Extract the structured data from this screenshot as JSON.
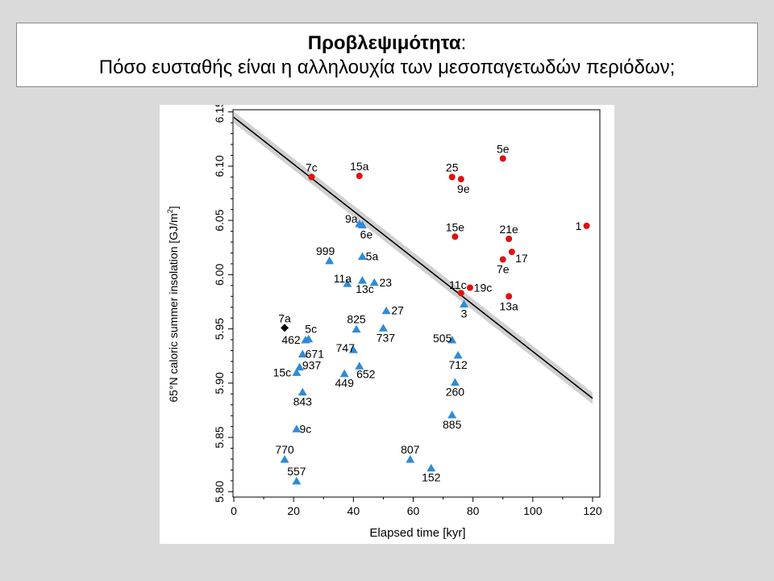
{
  "title": {
    "bold": "Προβλεψιμότητα",
    "colon": ":",
    "subtitle": "Πόσο ευσταθής είναι η αλληλουχία των μεσοπαγετωδών περιόδων;"
  },
  "colors": {
    "triangle": "#2f8bd6",
    "circle": "#e01010",
    "diamond": "#000000",
    "band": "#d0d0d0",
    "line": "#000000"
  },
  "chart_data": {
    "type": "scatter",
    "xlabel": "Elapsed time [kyr]",
    "ylabel": "65°N caloric summer insolation [GJ/m²]",
    "ylabel_main": "65°N caloric summer insolation [GJ/m",
    "ylabel_sup": "2",
    "ylabel_end": "]",
    "xlim": [
      0,
      120
    ],
    "ylim": [
      5.795,
      6.152
    ],
    "xticks": [
      0,
      20,
      40,
      60,
      80,
      100,
      120
    ],
    "yticks": [
      "5.80",
      "5.85",
      "5.90",
      "5.95",
      "6.00",
      "6.05",
      "6.10",
      "6.15"
    ],
    "fit_line": {
      "x": [
        0,
        120
      ],
      "y": [
        6.145,
        5.886
      ]
    },
    "series": [
      {
        "marker": "triangle",
        "points": [
          {
            "label": "9a",
            "x": 42,
            "y": 6.047,
            "lx": -10,
            "ly": -6
          },
          {
            "label": "6e",
            "x": 43,
            "y": 6.046,
            "lx": 5,
            "ly": 12
          },
          {
            "label": "999",
            "x": 32,
            "y": 6.013,
            "lx": -5,
            "ly": -12
          },
          {
            "label": "5a",
            "x": 43,
            "y": 6.017,
            "lx": 12,
            "ly": 0
          },
          {
            "label": "11a",
            "x": 38,
            "y": 5.992,
            "lx": -6,
            "ly": -6
          },
          {
            "label": "13c",
            "x": 43,
            "y": 5.995,
            "lx": 3,
            "ly": 11
          },
          {
            "label": "23",
            "x": 47,
            "y": 5.993,
            "lx": 14,
            "ly": 0
          },
          {
            "label": "27",
            "x": 51,
            "y": 5.967,
            "lx": 14,
            "ly": 0
          },
          {
            "label": "825",
            "x": 41,
            "y": 5.95,
            "lx": 0,
            "ly": -12
          },
          {
            "label": "737",
            "x": 50,
            "y": 5.951,
            "lx": 3,
            "ly": 12
          },
          {
            "label": "5c",
            "x": 25,
            "y": 5.941,
            "lx": 3,
            "ly": -12
          },
          {
            "label": "462",
            "x": 24,
            "y": 5.94,
            "lx": -18,
            "ly": 0
          },
          {
            "label": "747",
            "x": 40,
            "y": 5.931,
            "lx": -10,
            "ly": -2
          },
          {
            "label": "671",
            "x": 23,
            "y": 5.927,
            "lx": 15,
            "ly": 0
          },
          {
            "label": "937",
            "x": 22,
            "y": 5.915,
            "lx": 15,
            "ly": -2
          },
          {
            "label": "15c",
            "x": 21,
            "y": 5.91,
            "lx": -18,
            "ly": 0
          },
          {
            "label": "449",
            "x": 37,
            "y": 5.909,
            "lx": 0,
            "ly": 12
          },
          {
            "label": "652",
            "x": 42,
            "y": 5.916,
            "lx": 8,
            "ly": 10
          },
          {
            "label": "843",
            "x": 23,
            "y": 5.892,
            "lx": 0,
            "ly": 12
          },
          {
            "label": "9c",
            "x": 21,
            "y": 5.858,
            "lx": 11,
            "ly": 0
          },
          {
            "label": "770",
            "x": 17,
            "y": 5.83,
            "lx": 0,
            "ly": -12
          },
          {
            "label": "557",
            "x": 21,
            "y": 5.81,
            "lx": 0,
            "ly": -12
          },
          {
            "label": "807",
            "x": 59,
            "y": 5.83,
            "lx": 0,
            "ly": -12
          },
          {
            "label": "152",
            "x": 66,
            "y": 5.822,
            "lx": 0,
            "ly": 12
          },
          {
            "label": "505",
            "x": 73,
            "y": 5.94,
            "lx": -12,
            "ly": -2
          },
          {
            "label": "712",
            "x": 75,
            "y": 5.926,
            "lx": 0,
            "ly": 12
          },
          {
            "label": "260",
            "x": 74,
            "y": 5.901,
            "lx": 0,
            "ly": 12
          },
          {
            "label": "885",
            "x": 73,
            "y": 5.871,
            "lx": 0,
            "ly": 12
          },
          {
            "label": "3",
            "x": 77,
            "y": 5.973,
            "lx": 0,
            "ly": 12
          }
        ]
      },
      {
        "marker": "circle",
        "points": [
          {
            "label": "7c",
            "x": 26,
            "y": 6.09,
            "lx": 0,
            "ly": -12
          },
          {
            "label": "15a",
            "x": 42,
            "y": 6.091,
            "lx": 0,
            "ly": -12
          },
          {
            "label": "25",
            "x": 73,
            "y": 6.09,
            "lx": 0,
            "ly": -12
          },
          {
            "label": "9e",
            "x": 76,
            "y": 6.088,
            "lx": 3,
            "ly": 12
          },
          {
            "label": "5e",
            "x": 90,
            "y": 6.107,
            "lx": 0,
            "ly": -12
          },
          {
            "label": "15e",
            "x": 74,
            "y": 6.035,
            "lx": 0,
            "ly": -12
          },
          {
            "label": "21e",
            "x": 92,
            "y": 6.033,
            "lx": 0,
            "ly": -12
          },
          {
            "label": "1",
            "x": 118,
            "y": 6.045,
            "lx": -10,
            "ly": 0
          },
          {
            "label": "17",
            "x": 93,
            "y": 6.021,
            "lx": 12,
            "ly": 8
          },
          {
            "label": "7e",
            "x": 90,
            "y": 6.014,
            "lx": 0,
            "ly": 12
          },
          {
            "label": "11c",
            "x": 76,
            "y": 5.983,
            "lx": -4,
            "ly": -10
          },
          {
            "label": "19c",
            "x": 79,
            "y": 5.988,
            "lx": 16,
            "ly": 0
          },
          {
            "label": "13a",
            "x": 92,
            "y": 5.98,
            "lx": 0,
            "ly": 12
          }
        ]
      },
      {
        "marker": "diamond",
        "points": [
          {
            "label": "7a",
            "x": 17,
            "y": 5.951,
            "lx": 0,
            "ly": -12
          }
        ]
      }
    ]
  }
}
